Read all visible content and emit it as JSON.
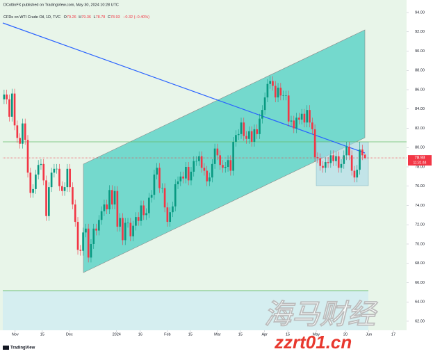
{
  "header": "DCottinFX published on TradingView.com, May 30, 2024 10:28 UTC",
  "watermark": [
    "海马财经",
    "zzrt01.cn"
  ],
  "logo": "TradingView",
  "chart_data": {
    "type": "candlestick",
    "symbol": "CFDs on WTI Crude Oil, 1D, TVC",
    "ohlc_letters": [
      "O",
      "H",
      "L",
      "C"
    ],
    "change_label": "−0.32 (−0.40%)",
    "countdown": "11:31:44",
    "up_color": "#089981",
    "down_color": "#f23645",
    "xlim": [
      -0.5,
      152.8
    ],
    "xticks": [
      {
        "value": 4.2,
        "label": "Nov"
      },
      {
        "value": 14.5,
        "label": "15"
      },
      {
        "value": 24.8,
        "label": "Dec"
      },
      {
        "value": 42.7,
        "label": "2024"
      },
      {
        "value": 51.7,
        "label": "16"
      },
      {
        "value": 62,
        "label": "Feb"
      },
      {
        "value": 70.7,
        "label": "15"
      },
      {
        "value": 81,
        "label": "Mar"
      },
      {
        "value": 89.7,
        "label": "15"
      },
      {
        "value": 98.9,
        "label": "Apr"
      },
      {
        "value": 107.7,
        "label": "15"
      },
      {
        "value": 118.5,
        "label": "May"
      },
      {
        "value": 129.6,
        "label": "20"
      },
      {
        "value": 138.5,
        "label": "Jun"
      },
      {
        "value": 147.8,
        "label": "17"
      }
    ],
    "ylim": [
      61.06,
      95.3
    ],
    "yticks": [
      {
        "value": 62,
        "label": "62.00"
      },
      {
        "value": 64,
        "label": "64.00"
      },
      {
        "value": 66,
        "label": "66.00"
      },
      {
        "value": 68,
        "label": "68.00"
      },
      {
        "value": 70,
        "label": "70.00"
      },
      {
        "value": 72,
        "label": "72.00"
      },
      {
        "value": 74,
        "label": "74.00"
      },
      {
        "value": 76,
        "label": "76.00"
      },
      {
        "value": 78,
        "label": "78.00"
      },
      {
        "value": 80,
        "label": "80.00"
      },
      {
        "value": 82,
        "label": "82.00"
      },
      {
        "value": 84,
        "label": "84.00"
      },
      {
        "value": 86,
        "label": "86.00"
      },
      {
        "value": 88,
        "label": "88.00"
      },
      {
        "value": 90,
        "label": "90.00"
      },
      {
        "value": 92,
        "label": "92.00"
      },
      {
        "value": 94,
        "label": "94.00"
      }
    ],
    "ohlc": [
      [
        85.0,
        86.0,
        84.5,
        85.5
      ],
      [
        85.5,
        86.0,
        84.5,
        85.0
      ],
      [
        85.0,
        85.5,
        82.7,
        83.2
      ],
      [
        83.2,
        86.1,
        82.7,
        85.6
      ],
      [
        85.6,
        86.1,
        81.8,
        82.3
      ],
      [
        82.3,
        82.8,
        80.5,
        81.0
      ],
      [
        81.0,
        81.5,
        79.9,
        80.4
      ],
      [
        80.4,
        83.0,
        79.9,
        82.5
      ],
      [
        82.5,
        83.0,
        80.3,
        80.8
      ],
      [
        80.8,
        81.3,
        76.9,
        77.4
      ],
      [
        77.4,
        77.9,
        74.8,
        75.3
      ],
      [
        75.3,
        76.2,
        74.8,
        75.7
      ],
      [
        75.7,
        77.7,
        75.2,
        77.2
      ],
      [
        77.2,
        78.7,
        76.7,
        78.2
      ],
      [
        78.2,
        78.8,
        77.7,
        78.3
      ],
      [
        78.3,
        78.8,
        76.1,
        76.6
      ],
      [
        76.6,
        77.1,
        72.4,
        72.9
      ],
      [
        72.9,
        76.4,
        72.4,
        75.9
      ],
      [
        75.9,
        77.9,
        75.4,
        77.4
      ],
      [
        77.4,
        78.3,
        76.9,
        77.8
      ],
      [
        77.8,
        78.3,
        77.3,
        77.8
      ],
      [
        77.8,
        78.3,
        75.5,
        76.0
      ],
      [
        76.0,
        76.5,
        75.0,
        75.5
      ],
      [
        75.5,
        76.4,
        75.0,
        75.9
      ],
      [
        75.9,
        78.3,
        75.4,
        77.8
      ],
      [
        77.8,
        78.3,
        75.4,
        75.9
      ],
      [
        75.9,
        76.4,
        73.6,
        74.1
      ],
      [
        74.1,
        74.6,
        71.8,
        72.3
      ],
      [
        72.3,
        72.8,
        68.9,
        69.4
      ],
      [
        69.4,
        69.9,
        68.8,
        69.3
      ],
      [
        69.3,
        71.7,
        68.8,
        71.2
      ],
      [
        71.2,
        72.1,
        70.7,
        71.6
      ],
      [
        71.6,
        72.1,
        68.1,
        68.6
      ],
      [
        68.6,
        70.5,
        68.1,
        70.0
      ],
      [
        70.0,
        72.1,
        69.5,
        71.6
      ],
      [
        71.6,
        72.1,
        70.9,
        71.4
      ],
      [
        71.4,
        73.0,
        70.9,
        72.5
      ],
      [
        72.5,
        73.9,
        72.0,
        73.4
      ],
      [
        73.4,
        74.6,
        72.9,
        74.1
      ],
      [
        74.1,
        74.6,
        73.1,
        73.6
      ],
      [
        73.6,
        76.1,
        73.1,
        75.6
      ],
      [
        75.6,
        76.1,
        73.6,
        74.1
      ],
      [
        74.1,
        76.0,
        73.6,
        75.5
      ],
      [
        75.5,
        76.0,
        71.3,
        71.8
      ],
      [
        71.8,
        73.2,
        71.3,
        72.7
      ],
      [
        72.7,
        73.2,
        69.9,
        70.4
      ],
      [
        70.4,
        72.7,
        69.9,
        72.2
      ],
      [
        72.2,
        72.7,
        71.7,
        72.2
      ],
      [
        72.2,
        72.7,
        70.3,
        70.8
      ],
      [
        70.8,
        72.4,
        70.3,
        71.9
      ],
      [
        71.9,
        73.3,
        71.4,
        72.8
      ],
      [
        72.8,
        73.3,
        71.9,
        72.4
      ],
      [
        72.4,
        74.5,
        71.9,
        74.0
      ],
      [
        74.0,
        74.5,
        72.5,
        73.0
      ],
      [
        73.0,
        73.7,
        72.5,
        73.2
      ],
      [
        73.2,
        75.3,
        72.7,
        74.8
      ],
      [
        74.8,
        75.6,
        74.3,
        75.1
      ],
      [
        75.1,
        77.7,
        74.6,
        77.2
      ],
      [
        77.2,
        78.4,
        76.7,
        77.9
      ],
      [
        77.9,
        78.4,
        75.3,
        75.8
      ],
      [
        75.8,
        76.3,
        75.3,
        75.8
      ],
      [
        75.8,
        76.3,
        73.3,
        73.8
      ],
      [
        73.8,
        74.3,
        71.8,
        72.3
      ],
      [
        72.3,
        73.8,
        71.8,
        73.3
      ],
      [
        73.3,
        74.4,
        72.8,
        73.9
      ],
      [
        73.9,
        76.7,
        73.4,
        76.2
      ],
      [
        76.2,
        77.0,
        75.7,
        76.5
      ],
      [
        76.5,
        77.5,
        76.0,
        77.0
      ],
      [
        77.0,
        77.5,
        76.3,
        76.8
      ],
      [
        76.8,
        78.5,
        76.3,
        78.0
      ],
      [
        78.0,
        78.5,
        76.1,
        76.6
      ],
      [
        76.6,
        78.0,
        76.1,
        77.5
      ],
      [
        77.5,
        79.1,
        77.0,
        78.6
      ],
      [
        78.6,
        79.1,
        78.1,
        78.6
      ],
      [
        78.6,
        79.6,
        78.1,
        79.1
      ],
      [
        79.1,
        79.6,
        77.4,
        77.9
      ],
      [
        77.9,
        78.4,
        77.1,
        77.6
      ],
      [
        77.6,
        78.1,
        76.0,
        76.5
      ],
      [
        76.5,
        77.4,
        76.0,
        76.9
      ],
      [
        76.9,
        78.8,
        76.4,
        78.3
      ],
      [
        78.3,
        80.4,
        77.8,
        79.9
      ],
      [
        79.9,
        80.4,
        78.7,
        79.2
      ],
      [
        79.2,
        79.7,
        77.7,
        78.2
      ],
      [
        78.2,
        78.7,
        77.4,
        77.9
      ],
      [
        77.9,
        78.5,
        77.4,
        78.0
      ],
      [
        78.0,
        79.2,
        77.5,
        78.7
      ],
      [
        78.7,
        79.2,
        77.1,
        77.6
      ],
      [
        77.6,
        81.1,
        77.1,
        80.6
      ],
      [
        80.6,
        81.8,
        80.1,
        81.3
      ],
      [
        81.3,
        81.9,
        80.8,
        81.4
      ],
      [
        81.4,
        83.1,
        80.9,
        82.6
      ],
      [
        82.6,
        83.1,
        80.7,
        81.2
      ],
      [
        81.2,
        81.7,
        80.4,
        80.9
      ],
      [
        80.9,
        82.2,
        80.4,
        81.7
      ],
      [
        81.7,
        82.2,
        80.1,
        80.6
      ],
      [
        80.6,
        82.4,
        80.1,
        81.9
      ],
      [
        81.9,
        82.4,
        80.9,
        81.4
      ],
      [
        81.4,
        83.5,
        80.9,
        83.0
      ],
      [
        83.0,
        84.4,
        82.5,
        83.9
      ],
      [
        83.9,
        85.7,
        83.4,
        85.2
      ],
      [
        85.2,
        87.1,
        84.7,
        86.6
      ],
      [
        86.6,
        87.4,
        86.1,
        86.9
      ],
      [
        86.9,
        87.4,
        85.9,
        86.4
      ],
      [
        86.4,
        86.9,
        84.7,
        85.2
      ],
      [
        85.2,
        86.7,
        84.7,
        86.2
      ],
      [
        86.2,
        86.7,
        84.9,
        85.4
      ],
      [
        85.4,
        85.9,
        84.9,
        85.4
      ],
      [
        85.4,
        85.9,
        84.9,
        85.4
      ],
      [
        85.4,
        85.9,
        82.2,
        82.7
      ],
      [
        82.7,
        83.3,
        82.2,
        82.8
      ],
      [
        82.8,
        83.3,
        81.5,
        82.0
      ],
      [
        82.0,
        83.6,
        81.5,
        83.1
      ],
      [
        83.1,
        83.6,
        82.4,
        82.9
      ],
      [
        82.9,
        84.0,
        82.4,
        83.5
      ],
      [
        83.5,
        84.0,
        82.1,
        82.6
      ],
      [
        82.6,
        84.4,
        82.1,
        83.9
      ],
      [
        83.9,
        84.4,
        82.1,
        82.6
      ],
      [
        82.6,
        83.1,
        81.4,
        81.9
      ],
      [
        81.9,
        82.4,
        78.5,
        79.0
      ],
      [
        79.0,
        79.5,
        78.4,
        78.9
      ],
      [
        78.9,
        79.4,
        77.6,
        78.1
      ],
      [
        78.1,
        78.6,
        77.4,
        77.9
      ],
      [
        77.9,
        79.0,
        77.4,
        78.5
      ],
      [
        78.5,
        79.0,
        77.9,
        78.4
      ],
      [
        78.4,
        79.7,
        77.9,
        79.2
      ],
      [
        79.2,
        79.7,
        78.1,
        78.6
      ],
      [
        78.6,
        79.6,
        78.1,
        79.1
      ],
      [
        79.1,
        79.6,
        77.4,
        77.9
      ],
      [
        77.9,
        78.8,
        77.4,
        78.3
      ],
      [
        78.3,
        79.7,
        77.8,
        79.2
      ],
      [
        79.2,
        80.6,
        78.7,
        80.1
      ],
      [
        80.1,
        80.6,
        78.7,
        79.2
      ],
      [
        79.2,
        79.7,
        77.1,
        77.6
      ],
      [
        77.6,
        78.1,
        76.4,
        76.9
      ],
      [
        76.9,
        78.2,
        76.4,
        77.7
      ],
      [
        77.7,
        80.6,
        77.2,
        79.8
      ],
      [
        79.8,
        80.3,
        78.7,
        79.2
      ],
      [
        79.26,
        79.36,
        78.78,
        78.93
      ]
    ]
  }
}
